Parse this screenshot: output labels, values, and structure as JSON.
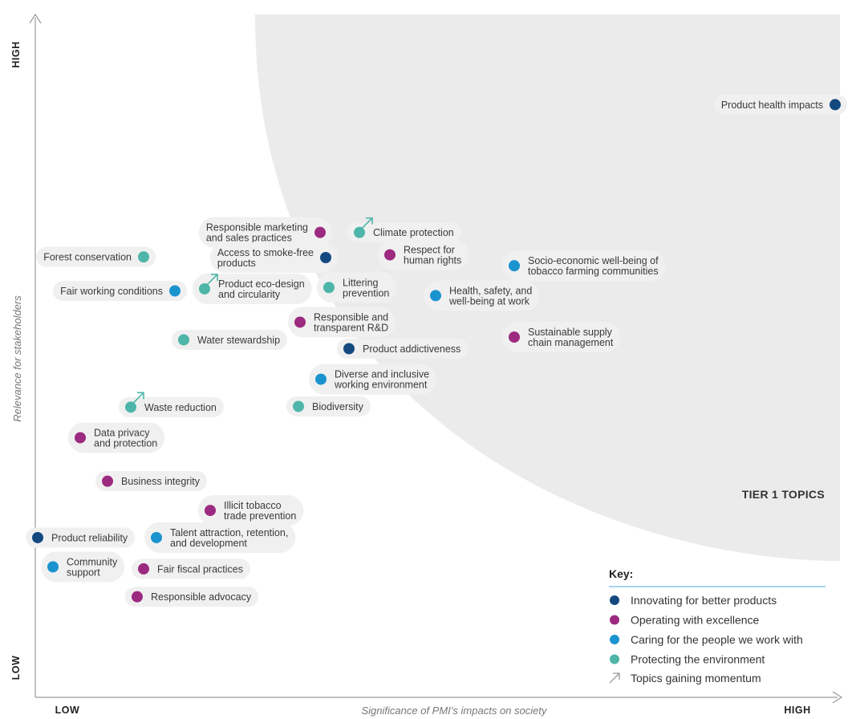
{
  "chart_data": {
    "type": "scatter",
    "title": "",
    "xlabel": "Significance of PMI’s impacts on society",
    "ylabel": "Relevance for stakeholders",
    "x_low_label": "LOW",
    "x_high_label": "HIGH",
    "y_low_label": "LOW",
    "y_high_label": "HIGH",
    "xlim": [
      0,
      100
    ],
    "ylim": [
      0,
      100
    ],
    "tier_label": "TIER 1 TOPICS",
    "legend": {
      "title": "Key:",
      "placement": "bottom-right",
      "items": [
        {
          "key": "innovating",
          "label": "Innovating for better products",
          "color": "#13497f"
        },
        {
          "key": "operating",
          "label": "Operating with excellence",
          "color": "#9c2a80"
        },
        {
          "key": "caring",
          "label": "Caring for the people we work with",
          "color": "#1b93cf"
        },
        {
          "key": "protecting",
          "label": "Protecting the environment",
          "color": "#4db6a8"
        }
      ],
      "momentum_label": "Topics gaining momentum"
    },
    "points": [
      {
        "label": [
          "Product health impacts"
        ],
        "x": 99.7,
        "y": 87.2,
        "category": "innovating",
        "momentum": false,
        "side": "left"
      },
      {
        "label": [
          "Responsible marketing",
          "and sales practices"
        ],
        "x": 35.5,
        "y": 68.4,
        "category": "operating",
        "momentum": false,
        "side": "left"
      },
      {
        "label": [
          "Climate protection"
        ],
        "x": 40.4,
        "y": 68.4,
        "category": "protecting",
        "momentum": true,
        "side": "right"
      },
      {
        "label": [
          "Forest conservation"
        ],
        "x": 13.5,
        "y": 64.8,
        "category": "protecting",
        "momentum": false,
        "side": "left"
      },
      {
        "label": [
          "Access to smoke-free",
          "products"
        ],
        "x": 36.2,
        "y": 64.7,
        "category": "innovating",
        "momentum": false,
        "side": "left"
      },
      {
        "label": [
          "Respect for",
          "human rights"
        ],
        "x": 44.2,
        "y": 65.1,
        "category": "operating",
        "momentum": false,
        "side": "right"
      },
      {
        "label": [
          "Socio-economic well-being of",
          "tobacco farming communities"
        ],
        "x": 59.7,
        "y": 63.5,
        "category": "caring",
        "momentum": false,
        "side": "right"
      },
      {
        "label": [
          "Fair working conditions"
        ],
        "x": 17.4,
        "y": 59.8,
        "category": "caring",
        "momentum": false,
        "side": "left"
      },
      {
        "label": [
          "Product eco-design",
          "and circularity"
        ],
        "x": 21.1,
        "y": 60.1,
        "category": "protecting",
        "momentum": true,
        "side": "right"
      },
      {
        "label": [
          "Littering",
          "prevention"
        ],
        "x": 36.6,
        "y": 60.3,
        "category": "protecting",
        "momentum": false,
        "side": "right"
      },
      {
        "label": [
          "Health, safety, and",
          "well-being at work"
        ],
        "x": 49.9,
        "y": 59.1,
        "category": "caring",
        "momentum": false,
        "side": "right"
      },
      {
        "label": [
          "Responsible and",
          "transparent R&D"
        ],
        "x": 33.0,
        "y": 55.2,
        "category": "operating",
        "momentum": false,
        "side": "right"
      },
      {
        "label": [
          "Sustainable supply",
          "chain management"
        ],
        "x": 59.7,
        "y": 53.0,
        "category": "operating",
        "momentum": false,
        "side": "right"
      },
      {
        "label": [
          "Water stewardship"
        ],
        "x": 18.5,
        "y": 52.6,
        "category": "protecting",
        "momentum": false,
        "side": "right"
      },
      {
        "label": [
          "Product addictiveness"
        ],
        "x": 39.1,
        "y": 51.3,
        "category": "innovating",
        "momentum": false,
        "side": "right"
      },
      {
        "label": [
          "Diverse and inclusive",
          "working environment"
        ],
        "x": 35.6,
        "y": 46.8,
        "category": "caring",
        "momentum": false,
        "side": "right"
      },
      {
        "label": [
          "Waste reduction"
        ],
        "x": 11.9,
        "y": 42.7,
        "category": "protecting",
        "momentum": true,
        "side": "right"
      },
      {
        "label": [
          "Biodiversity"
        ],
        "x": 32.8,
        "y": 42.8,
        "category": "protecting",
        "momentum": false,
        "side": "right"
      },
      {
        "label": [
          "Data privacy",
          "and protection"
        ],
        "x": 5.6,
        "y": 38.2,
        "category": "operating",
        "momentum": false,
        "side": "right"
      },
      {
        "label": [
          "Business integrity"
        ],
        "x": 9.0,
        "y": 31.8,
        "category": "operating",
        "momentum": false,
        "side": "right"
      },
      {
        "label": [
          "Illicit tobacco",
          "trade prevention"
        ],
        "x": 21.8,
        "y": 27.5,
        "category": "operating",
        "momentum": false,
        "side": "right"
      },
      {
        "label": [
          "Product reliability"
        ],
        "x": 0.3,
        "y": 23.5,
        "category": "innovating",
        "momentum": false,
        "side": "right"
      },
      {
        "label": [
          "Talent attraction, retention,",
          "and development"
        ],
        "x": 15.1,
        "y": 23.5,
        "category": "caring",
        "momentum": false,
        "side": "right"
      },
      {
        "label": [
          "Community",
          "support"
        ],
        "x": 2.2,
        "y": 19.2,
        "category": "caring",
        "momentum": false,
        "side": "right"
      },
      {
        "label": [
          "Fair fiscal practices"
        ],
        "x": 13.5,
        "y": 18.9,
        "category": "operating",
        "momentum": false,
        "side": "right"
      },
      {
        "label": [
          "Responsible advocacy"
        ],
        "x": 12.7,
        "y": 14.8,
        "category": "operating",
        "momentum": false,
        "side": "right"
      }
    ]
  }
}
